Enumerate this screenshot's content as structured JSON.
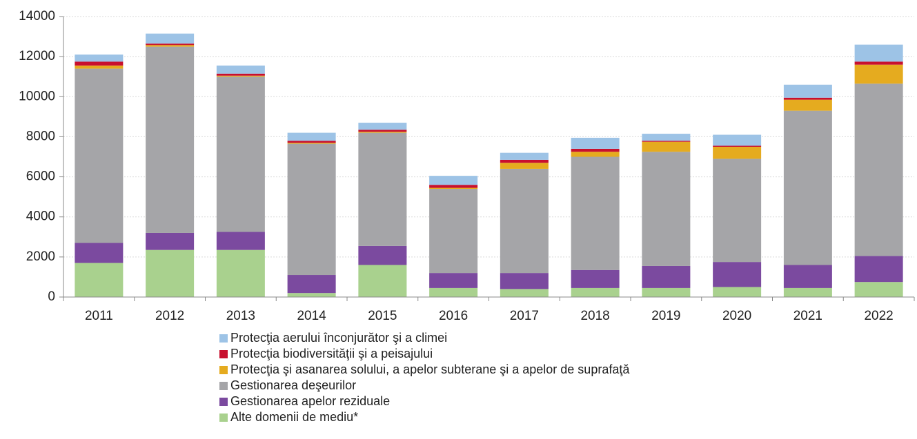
{
  "chart_data": {
    "type": "stacked_bar",
    "categories": [
      "2011",
      "2012",
      "2013",
      "2014",
      "2015",
      "2016",
      "2017",
      "2018",
      "2019",
      "2020",
      "2021",
      "2022"
    ],
    "series": [
      {
        "name": "Alte domenii de mediu*",
        "color": "#a9d18e",
        "values": [
          1700,
          2350,
          2350,
          200,
          1600,
          450,
          400,
          450,
          450,
          500,
          450,
          750
        ]
      },
      {
        "name": "Gestionarea apelor reziduale",
        "color": "#7b4a9f",
        "values": [
          1000,
          850,
          900,
          900,
          950,
          750,
          800,
          900,
          1100,
          1250,
          1150,
          1300
        ]
      },
      {
        "name": "Gestionarea  deşeurilor",
        "color": "#a5a5a8",
        "values": [
          8700,
          9300,
          7750,
          6550,
          5650,
          4200,
          5200,
          5650,
          5700,
          5150,
          7700,
          8600
        ]
      },
      {
        "name": "Protecţia şi asanarea solului, a apelor subterane şi a apelor de suprafaţă",
        "color": "#e5ab1f",
        "values": [
          150,
          80,
          50,
          50,
          50,
          50,
          300,
          250,
          500,
          600,
          550,
          950
        ]
      },
      {
        "name": "Protecţia  biodiversităţii şi a peisajului",
        "color": "#c8102e",
        "values": [
          200,
          70,
          100,
          100,
          100,
          150,
          150,
          150,
          50,
          50,
          100,
          150
        ]
      },
      {
        "name": "Protecţia aerului înconjurător şi a climei",
        "color": "#9dc3e6",
        "values": [
          350,
          500,
          400,
          400,
          350,
          450,
          350,
          550,
          350,
          550,
          650,
          850
        ]
      }
    ],
    "ylim": [
      0,
      14000
    ],
    "yticks": [
      0,
      2000,
      4000,
      6000,
      8000,
      10000,
      12000,
      14000
    ],
    "grid": true
  }
}
